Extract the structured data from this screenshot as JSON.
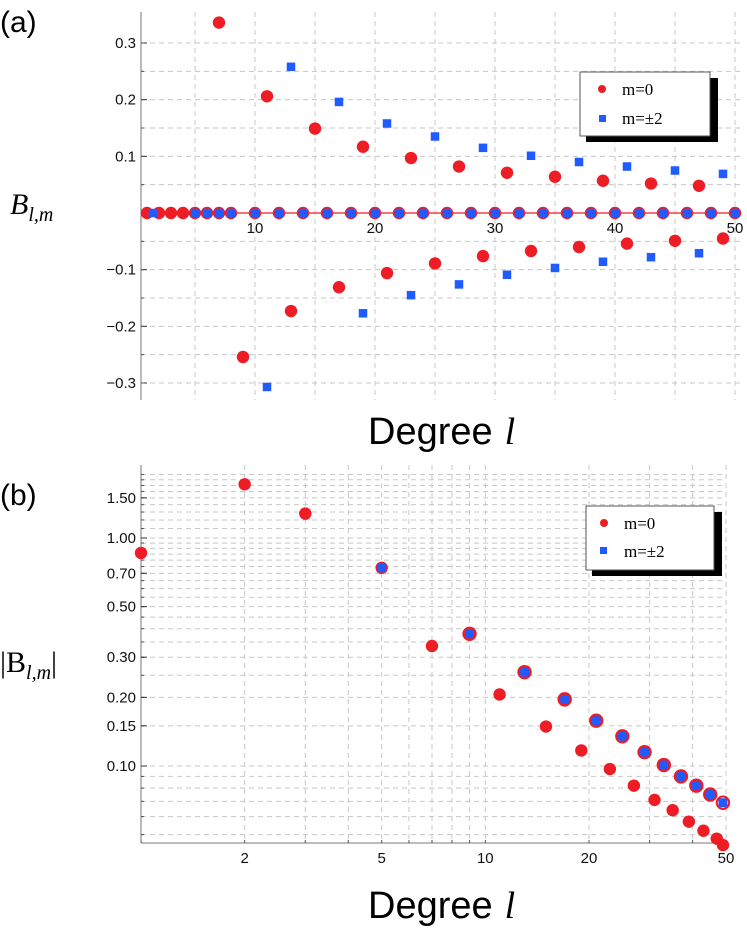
{
  "colors": {
    "m0": "#ee1c24",
    "m2": "#1f5bff",
    "grid": "#c8c8c8",
    "axis": "#777777"
  },
  "chart_data": [
    {
      "type": "scatter",
      "panel_label": "(a)",
      "xlabel": "Degree",
      "xlabel_var": "l",
      "ylabel": "B",
      "ylabel_sub": "l,m",
      "xlim": [
        0.5,
        50.5
      ],
      "ylim": [
        -0.33,
        0.35
      ],
      "xticks": [
        10,
        20,
        30,
        40,
        50
      ],
      "xtick_labels": [
        "10",
        "20",
        "30",
        "40",
        "50"
      ],
      "yticks": [
        -0.3,
        -0.2,
        -0.1,
        0.1,
        0.2,
        0.3
      ],
      "ytick_labels": [
        "−0.3",
        "−0.2",
        "−0.1",
        "0.1",
        "0.2",
        "0.3"
      ],
      "grid": true,
      "legend": {
        "position": "top-right",
        "entries": [
          "m=0",
          "m=±2"
        ]
      },
      "series": [
        {
          "name": "m=0",
          "x": [
            7,
            9,
            11,
            13,
            15,
            17,
            19,
            21,
            23,
            25,
            27,
            29,
            31,
            33,
            35,
            37,
            39,
            41,
            43,
            45,
            47,
            49
          ],
          "y": [
            0.336,
            -0.254,
            0.206,
            -0.173,
            0.149,
            -0.131,
            0.117,
            -0.106,
            0.097,
            -0.089,
            0.082,
            -0.076,
            0.071,
            -0.067,
            0.064,
            -0.06,
            0.057,
            -0.054,
            0.052,
            -0.049,
            0.048,
            -0.045
          ]
        },
        {
          "name": "m=±2",
          "x": [
            11,
            13,
            17,
            19,
            21,
            23,
            25,
            27,
            29,
            31,
            33,
            35,
            37,
            39,
            41,
            43,
            45,
            47,
            49
          ],
          "y": [
            -0.307,
            0.258,
            0.196,
            -0.177,
            0.158,
            -0.145,
            0.135,
            -0.126,
            0.115,
            -0.109,
            0.101,
            -0.097,
            0.09,
            -0.086,
            0.082,
            -0.078,
            0.075,
            -0.071,
            0.069
          ]
        },
        {
          "name": "m=0 zeros",
          "x": [
            1,
            2,
            3,
            4,
            5,
            6,
            7,
            8,
            10,
            12,
            14,
            16,
            18,
            20,
            22,
            24,
            26,
            28,
            30,
            32,
            34,
            36,
            38,
            40,
            42,
            44,
            46,
            48,
            50
          ],
          "y": [
            0,
            0,
            0,
            0,
            0,
            0,
            0,
            0,
            0,
            0,
            0,
            0,
            0,
            0,
            0,
            0,
            0,
            0,
            0,
            0,
            0,
            0,
            0,
            0,
            0,
            0,
            0,
            0,
            0
          ]
        },
        {
          "name": "m=±2 zeros",
          "x": [
            1.5,
            5,
            6,
            7,
            8,
            10,
            12,
            14,
            16,
            18,
            20,
            22,
            24,
            26,
            28,
            30,
            32,
            34,
            36,
            38,
            40,
            42,
            44,
            46,
            48,
            50
          ],
          "y": [
            0,
            0,
            0,
            0,
            0,
            0,
            0,
            0,
            0,
            0,
            0,
            0,
            0,
            0,
            0,
            0,
            0,
            0,
            0,
            0,
            0,
            0,
            0,
            0,
            0,
            0
          ]
        }
      ]
    },
    {
      "type": "scatter",
      "panel_label": "(b)",
      "xlabel": "Degree",
      "xlabel_var": "l",
      "ylabel": "|B",
      "ylabel_sub": "l,m",
      "ylabel_end": "|",
      "xscale": "log",
      "yscale": "log",
      "xlim": [
        1,
        50
      ],
      "ylim": [
        0.045,
        2.0
      ],
      "xticks": [
        2,
        5,
        10,
        20,
        50
      ],
      "xtick_labels": [
        "2",
        "5",
        "10",
        "20",
        "50"
      ],
      "yticks": [
        0.1,
        0.15,
        0.2,
        0.3,
        0.5,
        0.7,
        1.0,
        1.5
      ],
      "ytick_labels": [
        "0.10",
        "0.15",
        "0.20",
        "0.30",
        "0.50",
        "0.70",
        "1.00",
        "1.50"
      ],
      "grid": true,
      "legend": {
        "position": "top-right",
        "entries": [
          "m=0",
          "m=±2"
        ]
      },
      "series": [
        {
          "name": "m=0",
          "x": [
            1,
            2,
            3,
            5,
            7,
            9,
            11,
            13,
            15,
            17,
            19,
            21,
            23,
            25,
            27,
            29,
            31,
            33,
            35,
            37,
            39,
            41,
            43,
            45,
            47,
            49
          ],
          "y": [
            0.86,
            1.72,
            1.28,
            0.74,
            0.336,
            0.38,
            0.206,
            0.258,
            0.149,
            0.196,
            0.117,
            0.158,
            0.097,
            0.135,
            0.082,
            0.115,
            0.071,
            0.101,
            0.064,
            0.09,
            0.057,
            0.082,
            0.052,
            0.075,
            0.048,
            0.045
          ]
        },
        {
          "name": "m=±2",
          "x": [
            5,
            9,
            13,
            17,
            21,
            25,
            29,
            33,
            37,
            41,
            45,
            49
          ],
          "y": [
            0.74,
            0.38,
            0.258,
            0.196,
            0.158,
            0.135,
            0.115,
            0.101,
            0.09,
            0.082,
            0.075,
            0.069
          ]
        },
        {
          "name": "m=0 overlay",
          "x": [
            9,
            13,
            17,
            21,
            25,
            29,
            33,
            37,
            41,
            45,
            49
          ],
          "y": [
            0.38,
            0.258,
            0.196,
            0.158,
            0.135,
            0.115,
            0.101,
            0.09,
            0.082,
            0.075,
            0.069
          ]
        }
      ]
    }
  ]
}
